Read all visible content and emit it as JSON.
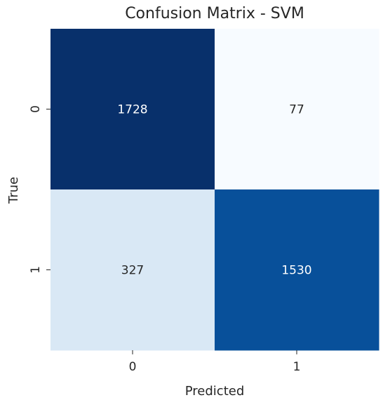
{
  "chart_data": {
    "type": "heatmap",
    "title": "Confusion Matrix - SVM",
    "xlabel": "Predicted",
    "ylabel": "True",
    "x_categories": [
      "0",
      "1"
    ],
    "y_categories": [
      "0",
      "1"
    ],
    "values": [
      [
        1728,
        77
      ],
      [
        327,
        1530
      ]
    ],
    "colormap": "Blues",
    "colorbar": false,
    "grid": false
  }
}
